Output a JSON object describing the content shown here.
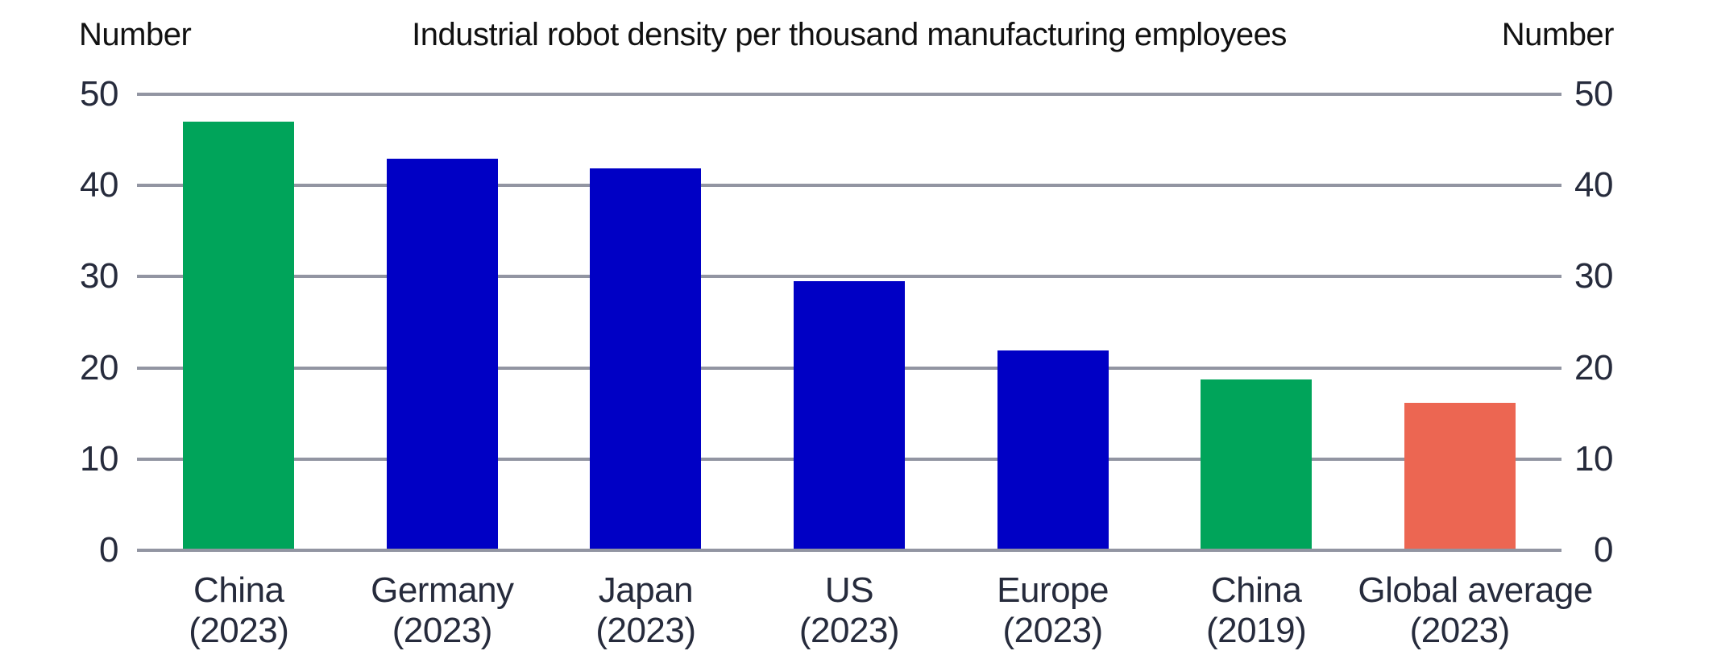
{
  "chart_data": {
    "type": "bar",
    "title": "Industrial robot density per thousand manufacturing employees",
    "ylabel_left": "Number",
    "ylabel_right": "Number",
    "ylim": [
      0,
      50
    ],
    "yticks": [
      0,
      10,
      20,
      30,
      40,
      50
    ],
    "grid": "horizontal",
    "legend": "none",
    "categories": [
      "China (2023)",
      "Germany (2023)",
      "Japan (2023)",
      "US (2023)",
      "Europe (2023)",
      "China (2019)",
      "Global average (2023)"
    ],
    "values": [
      47.0,
      42.9,
      41.9,
      29.5,
      21.9,
      18.7,
      16.2
    ],
    "bars": [
      {
        "slug": "china-2023",
        "label": "China",
        "year_label": "(2023)",
        "value": 47.0,
        "color": "#00A45A"
      },
      {
        "slug": "germany-2023",
        "label": "Germany",
        "year_label": "(2023)",
        "value": 42.9,
        "color": "#0000C5"
      },
      {
        "slug": "japan-2023",
        "label": "Japan",
        "year_label": "(2023)",
        "value": 41.9,
        "color": "#0000C5"
      },
      {
        "slug": "us-2023",
        "label": "US",
        "year_label": "(2023)",
        "value": 29.5,
        "color": "#0000C5"
      },
      {
        "slug": "europe-2023",
        "label": "Europe",
        "year_label": "(2023)",
        "value": 21.9,
        "color": "#0000C5"
      },
      {
        "slug": "china-2019",
        "label": "China",
        "year_label": "(2019)",
        "value": 18.7,
        "color": "#00A45A"
      },
      {
        "slug": "global-average-2023",
        "label": "Global average",
        "year_label": "(2023)",
        "value": 16.2,
        "color": "#EC6652"
      }
    ],
    "colors": {
      "green": "#00A45A",
      "blue": "#0000C5",
      "salmon": "#EC6652",
      "gridline": "#9295A2",
      "axis_text": "#262B3C",
      "title_text": "#111111"
    }
  }
}
